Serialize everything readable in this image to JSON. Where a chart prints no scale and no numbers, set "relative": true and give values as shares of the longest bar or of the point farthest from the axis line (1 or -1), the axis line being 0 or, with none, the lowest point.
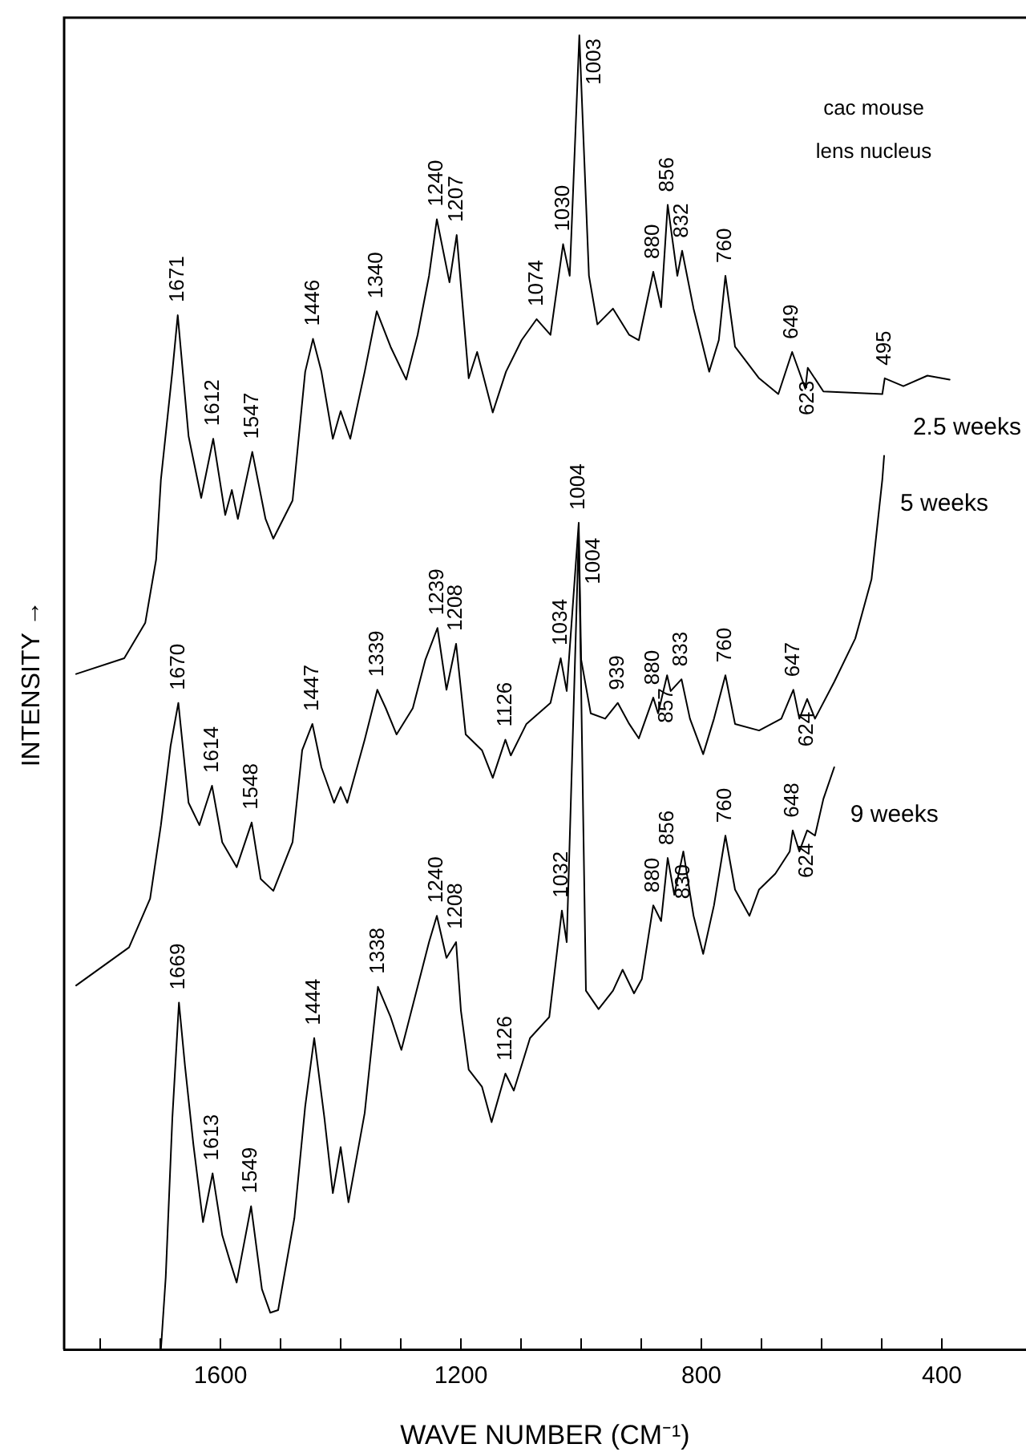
{
  "chart_data": {
    "type": "line",
    "relative": true,
    "xlabel": "WAVE NUMBER (CM⁻¹)",
    "ylabel": "INTENSITY →",
    "xlim": [
      1860,
      260
    ],
    "xticks": [
      {
        "value": 1800,
        "label": null
      },
      {
        "value": 1700,
        "label": null
      },
      1600,
      {
        "value": 1500,
        "label": null
      },
      {
        "value": 1400,
        "label": null
      },
      {
        "value": 1300,
        "label": null
      },
      1200,
      {
        "value": 1100,
        "label": null
      },
      {
        "value": 1000,
        "label": null
      },
      {
        "value": 900,
        "label": null
      },
      800,
      {
        "value": 700,
        "label": null
      },
      {
        "value": 600,
        "label": null
      },
      {
        "value": 500,
        "label": null
      },
      400
    ],
    "grid": false,
    "legend": false,
    "marker": "none",
    "line_style": "solid",
    "series": [
      {
        "name": "2.5 weeks",
        "color": "#000000",
        "x": [
          1840,
          1760,
          1725,
          1707,
          1699,
          1680,
          1671,
          1653,
          1632,
          1612,
          1592,
          1581,
          1571,
          1547,
          1525,
          1512,
          1480,
          1459,
          1446,
          1432,
          1413,
          1400,
          1384,
          1360,
          1340,
          1317,
          1291,
          1272,
          1253,
          1240,
          1219,
          1207,
          1187,
          1173,
          1147,
          1125,
          1099,
          1074,
          1051,
          1030,
          1019,
          1003,
          987,
          973,
          947,
          920,
          904,
          880,
          867,
          856,
          840,
          832,
          813,
          787,
          771,
          760,
          744,
          704,
          672,
          649,
          627,
          623,
          597,
          499,
          495,
          464,
          424,
          387
        ],
        "values": [
          0.514,
          0.526,
          0.553,
          0.601,
          0.662,
          0.744,
          0.787,
          0.695,
          0.648,
          0.693,
          0.635,
          0.654,
          0.632,
          0.683,
          0.632,
          0.617,
          0.646,
          0.744,
          0.769,
          0.744,
          0.693,
          0.714,
          0.693,
          0.744,
          0.79,
          0.763,
          0.738,
          0.772,
          0.817,
          0.86,
          0.812,
          0.848,
          0.739,
          0.759,
          0.713,
          0.744,
          0.768,
          0.784,
          0.772,
          0.841,
          0.817,
          1,
          0.817,
          0.78,
          0.792,
          0.772,
          0.768,
          0.82,
          0.793,
          0.871,
          0.817,
          0.836,
          0.792,
          0.744,
          0.768,
          0.817,
          0.763,
          0.739,
          0.727,
          0.759,
          0.731,
          0.747,
          0.729,
          0.727,
          0.739,
          0.733,
          0.741,
          0.738
        ]
      },
      {
        "name": "5 weeks",
        "color": "#000000",
        "x": [
          1840,
          1752,
          1717,
          1699,
          1683,
          1670,
          1653,
          1635,
          1614,
          1597,
          1573,
          1548,
          1533,
          1512,
          1480,
          1464,
          1447,
          1432,
          1411,
          1400,
          1389,
          1360,
          1339,
          1325,
          1307,
          1280,
          1259,
          1239,
          1224,
          1208,
          1192,
          1165,
          1147,
          1126,
          1117,
          1091,
          1051,
          1034,
          1024,
          1004,
          1000,
          984,
          960,
          939,
          920,
          904,
          880,
          872,
          857,
          851,
          833,
          819,
          797,
          779,
          760,
          744,
          704,
          667,
          647,
          637,
          624,
          611,
          579,
          544,
          517,
          499,
          496
        ],
        "values": [
          0.277,
          0.306,
          0.343,
          0.399,
          0.459,
          0.492,
          0.416,
          0.399,
          0.429,
          0.386,
          0.367,
          0.401,
          0.358,
          0.349,
          0.386,
          0.456,
          0.476,
          0.443,
          0.416,
          0.428,
          0.416,
          0.464,
          0.502,
          0.488,
          0.468,
          0.488,
          0.525,
          0.549,
          0.502,
          0.537,
          0.468,
          0.456,
          0.435,
          0.464,
          0.452,
          0.476,
          0.492,
          0.526,
          0.501,
          0.629,
          0.525,
          0.484,
          0.48,
          0.492,
          0.476,
          0.465,
          0.496,
          0.484,
          0.513,
          0.501,
          0.51,
          0.48,
          0.453,
          0.48,
          0.513,
          0.476,
          0.471,
          0.48,
          0.502,
          0.48,
          0.495,
          0.48,
          0.508,
          0.541,
          0.586,
          0.662,
          0.68
        ]
      },
      {
        "name": "9 weeks",
        "color": "#000000",
        "x": [
          1699,
          1691,
          1680,
          1669,
          1659,
          1645,
          1629,
          1613,
          1597,
          1584,
          1573,
          1549,
          1531,
          1517,
          1504,
          1477,
          1459,
          1444,
          1427,
          1413,
          1400,
          1387,
          1360,
          1338,
          1317,
          1299,
          1253,
          1240,
          1224,
          1208,
          1200,
          1187,
          1165,
          1149,
          1126,
          1112,
          1085,
          1053,
          1032,
          1024,
          1004,
          992,
          971,
          947,
          931,
          912,
          899,
          880,
          867,
          856,
          845,
          830,
          813,
          797,
          779,
          760,
          744,
          720,
          704,
          677,
          653,
          648,
          637,
          624,
          611,
          597,
          579
        ],
        "values": [
          0,
          0.055,
          0.176,
          0.264,
          0.216,
          0.156,
          0.097,
          0.134,
          0.087,
          0.067,
          0.051,
          0.109,
          0.046,
          0.028,
          0.03,
          0.1,
          0.185,
          0.237,
          0.176,
          0.119,
          0.154,
          0.112,
          0.18,
          0.276,
          0.253,
          0.228,
          0.31,
          0.33,
          0.298,
          0.31,
          0.258,
          0.213,
          0.2,
          0.173,
          0.21,
          0.197,
          0.237,
          0.253,
          0.334,
          0.31,
          0.62,
          0.273,
          0.259,
          0.273,
          0.289,
          0.271,
          0.282,
          0.338,
          0.326,
          0.374,
          0.346,
          0.379,
          0.33,
          0.301,
          0.338,
          0.391,
          0.35,
          0.33,
          0.35,
          0.362,
          0.379,
          0.395,
          0.379,
          0.395,
          0.391,
          0.419,
          0.443
        ]
      }
    ],
    "annotations": [
      "cac mouse",
      "lens nucleus",
      {
        "text": "1671",
        "x": 1671,
        "y": 0.787
      },
      {
        "text": "1612",
        "x": 1612,
        "y": 0.693
      },
      {
        "text": "1547",
        "x": 1547,
        "y": 0.683
      },
      {
        "text": "1446",
        "x": 1446,
        "y": 0.769
      },
      {
        "text": "1340",
        "x": 1340,
        "y": 0.79
      },
      {
        "text": "1240",
        "x": 1240,
        "y": 0.86
      },
      {
        "text": "1207",
        "x": 1207,
        "y": 0.848
      },
      {
        "text": "1074",
        "x": 1074,
        "y": 0.784
      },
      {
        "text": "1030",
        "x": 1030,
        "y": 0.841
      },
      {
        "text": "1003",
        "x": 1003,
        "y": 1
      },
      {
        "text": "880",
        "x": 880,
        "y": 0.82
      },
      {
        "text": "856",
        "x": 856,
        "y": 0.871
      },
      {
        "text": "832",
        "x": 832,
        "y": 0.836
      },
      {
        "text": "760",
        "x": 760,
        "y": 0.817
      },
      {
        "text": "649",
        "x": 649,
        "y": 0.759
      },
      {
        "text": "623",
        "x": 623,
        "y": 0.747
      },
      {
        "text": "495",
        "x": 495,
        "y": 0.739
      },
      {
        "text": "1670",
        "x": 1670,
        "y": 0.492
      },
      {
        "text": "1614",
        "x": 1614,
        "y": 0.429
      },
      {
        "text": "1548",
        "x": 1548,
        "y": 0.401
      },
      {
        "text": "1447",
        "x": 1447,
        "y": 0.476
      },
      {
        "text": "1339",
        "x": 1339,
        "y": 0.502
      },
      {
        "text": "1239",
        "x": 1239,
        "y": 0.549
      },
      {
        "text": "1208",
        "x": 1208,
        "y": 0.537
      },
      {
        "text": "1126",
        "x": 1126,
        "y": 0.464
      },
      {
        "text": "1034",
        "x": 1034,
        "y": 0.526
      },
      {
        "text": "1004",
        "x": 1004,
        "y": 0.629
      },
      {
        "text": "939",
        "x": 939,
        "y": 0.492
      },
      {
        "text": "880",
        "x": 880,
        "y": 0.496
      },
      {
        "text": "857",
        "x": 857,
        "y": 0.513
      },
      {
        "text": "833",
        "x": 833,
        "y": 0.51
      },
      {
        "text": "760",
        "x": 760,
        "y": 0.513
      },
      {
        "text": "647",
        "x": 647,
        "y": 0.502
      },
      {
        "text": "624",
        "x": 624,
        "y": 0.495
      },
      {
        "text": "1669",
        "x": 1669,
        "y": 0.264
      },
      {
        "text": "1613",
        "x": 1613,
        "y": 0.134
      },
      {
        "text": "1549",
        "x": 1549,
        "y": 0.109
      },
      {
        "text": "1444",
        "x": 1444,
        "y": 0.237
      },
      {
        "text": "1338",
        "x": 1338,
        "y": 0.276
      },
      {
        "text": "1240",
        "x": 1240,
        "y": 0.33
      },
      {
        "text": "1208",
        "x": 1208,
        "y": 0.31
      },
      {
        "text": "1126",
        "x": 1126,
        "y": 0.21
      },
      {
        "text": "1032",
        "x": 1032,
        "y": 0.334
      },
      {
        "text": "1004",
        "x": 1004,
        "y": 0.62
      },
      {
        "text": "880",
        "x": 880,
        "y": 0.338
      },
      {
        "text": "856",
        "x": 856,
        "y": 0.374
      },
      {
        "text": "830",
        "x": 830,
        "y": 0.379
      },
      {
        "text": "760",
        "x": 760,
        "y": 0.391
      },
      {
        "text": "648",
        "x": 648,
        "y": 0.395
      },
      {
        "text": "624",
        "x": 624,
        "y": 0.395
      }
    ]
  }
}
